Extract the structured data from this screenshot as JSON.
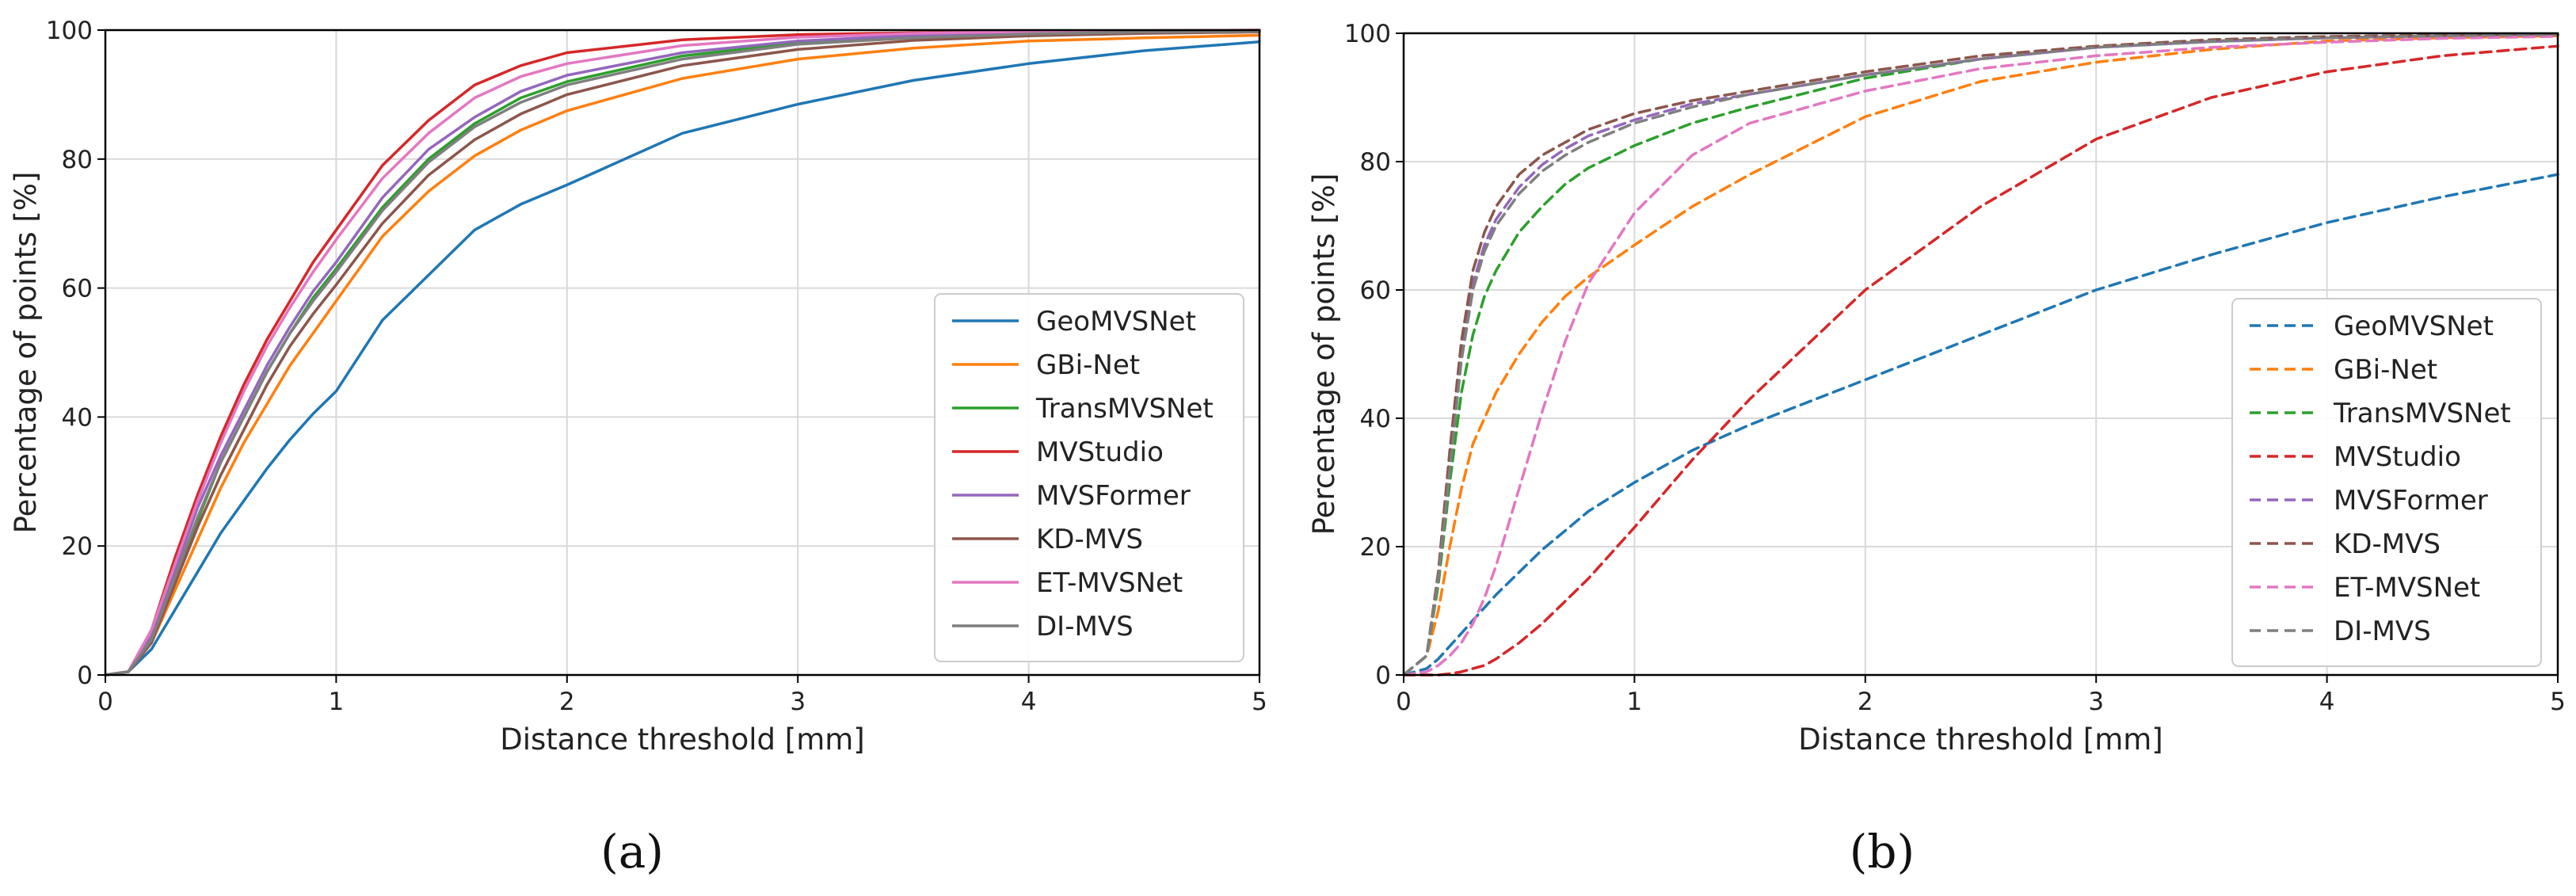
{
  "chart_data": [
    {
      "id": "a",
      "type": "line",
      "caption": "(a)",
      "xlabel": "Distance threshold [mm]",
      "ylabel": "Percentage of points [%]",
      "xlim": [
        0,
        5
      ],
      "ylim": [
        0,
        100
      ],
      "xticks": [
        "0",
        "1",
        "2",
        "3",
        "4",
        "5"
      ],
      "yticks": [
        "0",
        "20",
        "40",
        "60",
        "80",
        "100"
      ],
      "grid": true,
      "legend_position": "lower-right",
      "line_style": "solid",
      "x": [
        0,
        0.1,
        0.2,
        0.3,
        0.4,
        0.5,
        0.6,
        0.7,
        0.8,
        0.9,
        1.0,
        1.2,
        1.4,
        1.6,
        1.8,
        2.0,
        2.5,
        3.0,
        3.5,
        4.0,
        4.5,
        5.0
      ],
      "series": [
        {
          "name": "GeoMVSNet",
          "color": "#1f77b4",
          "values": [
            0,
            0.5,
            4,
            10,
            16,
            22,
            27,
            32,
            36.5,
            40.5,
            44,
            55,
            62,
            69,
            73,
            76,
            84,
            88.5,
            92.2,
            94.8,
            96.8,
            98.2
          ]
        },
        {
          "name": "GBi-Net",
          "color": "#ff7f0e",
          "values": [
            0,
            0.5,
            5,
            13,
            21,
            29,
            36,
            42,
            48,
            53,
            58,
            68,
            75,
            80.5,
            84.5,
            87.5,
            92.5,
            95.5,
            97.2,
            98.3,
            98.8,
            99.2
          ]
        },
        {
          "name": "TransMVSNet",
          "color": "#2ca02c",
          "values": [
            0,
            0.5,
            6,
            15,
            24,
            33,
            40,
            47,
            53,
            58.5,
            63,
            72.5,
            80,
            85.5,
            89.5,
            92,
            96,
            98,
            99,
            99.5,
            99.7,
            99.8
          ]
        },
        {
          "name": "MVStudio",
          "color": "#d62728",
          "values": [
            0,
            0.5,
            7,
            18,
            28,
            37,
            45,
            52,
            58,
            64,
            69,
            79,
            86,
            91.5,
            94.5,
            96.5,
            98.5,
            99.3,
            99.6,
            99.8,
            99.9,
            100
          ]
        },
        {
          "name": "MVSFormer",
          "color": "#9467bd",
          "values": [
            0,
            0.5,
            6,
            16,
            26,
            34,
            41,
            48,
            54,
            59.5,
            64,
            74,
            81.5,
            86.5,
            90.5,
            93,
            96.5,
            98.3,
            99.2,
            99.6,
            99.8,
            99.9
          ]
        },
        {
          "name": "KD-MVS",
          "color": "#8c564b",
          "values": [
            0,
            0.5,
            5,
            14,
            23,
            31,
            38,
            45,
            51,
            56,
            60.5,
            70,
            77.5,
            83,
            87,
            90,
            94.5,
            97,
            98.4,
            99.1,
            99.5,
            99.7
          ]
        },
        {
          "name": "ET-MVSNet",
          "color": "#e377c2",
          "values": [
            0,
            0.5,
            7,
            17,
            27,
            36,
            44,
            51,
            57,
            62.5,
            67.5,
            77,
            84,
            89.5,
            92.8,
            94.8,
            97.6,
            98.9,
            99.5,
            99.8,
            99.9,
            100
          ]
        },
        {
          "name": "DI-MVS",
          "color": "#7f7f7f",
          "values": [
            0,
            0.5,
            5.5,
            15,
            24.5,
            33,
            40,
            47,
            53,
            58,
            62.5,
            72,
            79.5,
            85,
            88.8,
            91.5,
            95.5,
            97.8,
            98.8,
            99.4,
            99.7,
            99.8
          ]
        }
      ]
    },
    {
      "id": "b",
      "type": "line",
      "caption": "(b)",
      "xlabel": "Distance threshold [mm]",
      "ylabel": "Percentage of points [%]",
      "xlim": [
        0,
        5
      ],
      "ylim": [
        0,
        100
      ],
      "xticks": [
        "0",
        "1",
        "2",
        "3",
        "4",
        "5"
      ],
      "yticks": [
        "0",
        "20",
        "40",
        "60",
        "80",
        "100"
      ],
      "grid": true,
      "legend_position": "lower-right",
      "line_style": "dashed",
      "x": [
        0,
        0.1,
        0.15,
        0.2,
        0.25,
        0.3,
        0.35,
        0.4,
        0.5,
        0.6,
        0.7,
        0.8,
        1.0,
        1.25,
        1.5,
        2.0,
        2.5,
        3.0,
        3.5,
        4.0,
        4.5,
        5.0
      ],
      "series": [
        {
          "name": "GeoMVSNet",
          "color": "#1f77b4",
          "values": [
            0,
            1,
            2.5,
            4.5,
            6.5,
            8.5,
            10.5,
            12.5,
            16,
            19.5,
            22.5,
            25.5,
            30,
            35,
            39,
            46,
            53,
            60,
            65.5,
            70.5,
            74.5,
            78
          ]
        },
        {
          "name": "GBi-Net",
          "color": "#ff7f0e",
          "values": [
            0,
            3,
            10,
            20,
            29,
            36,
            40,
            44,
            50,
            55,
            59,
            62,
            67,
            73,
            78,
            87,
            92.5,
            95.5,
            97.5,
            98.8,
            99.3,
            99.6
          ]
        },
        {
          "name": "TransMVSNet",
          "color": "#2ca02c",
          "values": [
            0,
            3,
            14,
            30,
            44,
            53,
            59,
            63,
            69,
            73,
            76.5,
            79,
            82.5,
            86,
            88.5,
            93,
            96,
            97.8,
            98.7,
            99.3,
            99.6,
            99.8
          ]
        },
        {
          "name": "MVStudio",
          "color": "#d62728",
          "values": [
            0,
            0,
            0,
            0.2,
            0.5,
            1,
            1.5,
            2.5,
            5,
            8,
            11.5,
            15,
            23,
            33.5,
            43,
            60,
            73,
            83.5,
            90,
            94,
            96.5,
            98
          ]
        },
        {
          "name": "MVSFormer",
          "color": "#9467bd",
          "values": [
            0,
            3,
            15,
            33,
            50,
            61,
            67,
            71,
            76,
            79.5,
            82,
            84,
            86.5,
            89,
            90.5,
            93.5,
            96,
            97.8,
            98.7,
            99.3,
            99.6,
            99.8
          ]
        },
        {
          "name": "KD-MVS",
          "color": "#8c564b",
          "values": [
            0,
            3,
            16,
            35,
            52,
            63,
            69,
            73,
            78,
            81,
            83,
            85,
            87.5,
            89.5,
            91,
            94,
            96.5,
            98,
            99,
            99.5,
            99.7,
            99.9
          ]
        },
        {
          "name": "ET-MVSNet",
          "color": "#e377c2",
          "values": [
            0,
            0.5,
            1.5,
            3,
            5,
            8,
            12,
            17,
            29,
            41,
            52,
            61,
            72,
            81,
            86,
            91,
            94.5,
            96.5,
            97.8,
            98.6,
            99.2,
            99.5
          ]
        },
        {
          "name": "DI-MVS",
          "color": "#7f7f7f",
          "values": [
            0,
            3,
            15,
            32,
            49,
            60,
            66,
            70,
            75,
            78.5,
            81,
            83,
            86,
            88.5,
            90.5,
            93.5,
            96,
            97.8,
            98.8,
            99.3,
            99.6,
            99.8
          ]
        }
      ]
    }
  ]
}
